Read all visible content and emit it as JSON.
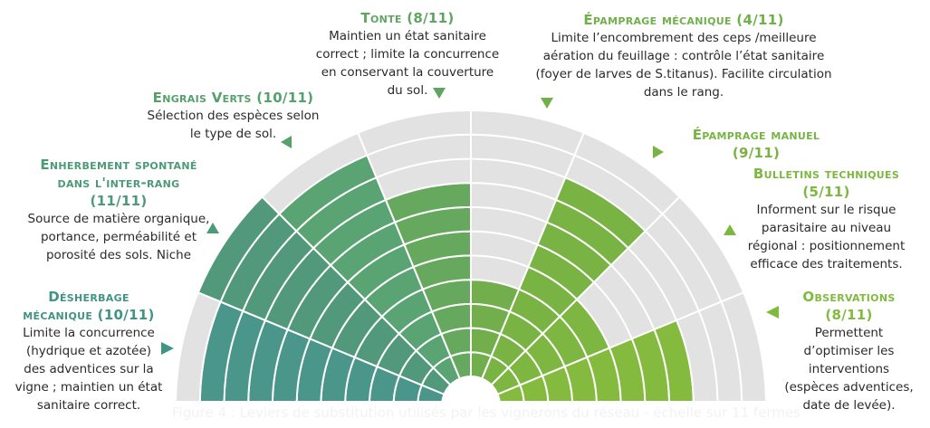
{
  "chart_data": {
    "type": "radial-bar",
    "title": "Leviers de substitution utilisés par les vignerons du réseau",
    "scale_max": 11,
    "unit": "fermes",
    "categories": [
      "Désherbage mécanique",
      "Enherbement spontané dans l'inter-rang",
      "Engrais verts",
      "Tonte",
      "Épamprage mécanique",
      "Épamprage manuel",
      "Bulletins techniques",
      "Observations"
    ],
    "values": [
      10,
      11,
      10,
      8,
      4,
      9,
      5,
      8
    ],
    "colors": [
      "#4a968a",
      "#52997c",
      "#5aa372",
      "#66a85e",
      "#72ae4c",
      "#79b343",
      "#7db640",
      "#84ba3e"
    ],
    "background_color": "#e2e2e2",
    "grid": true,
    "rings": 11
  },
  "labels": [
    {
      "title": "Désherbage mécanique (10/11)",
      "title_lines": [
        "Désherbage",
        "mécanique (10/11)"
      ],
      "desc_lines": [
        "Limite la concurrence",
        "(hydrique et azotée)",
        "des adventices sur la",
        "vigne ; maintien un état",
        "sanitaire correct."
      ],
      "color": "#3f9484"
    },
    {
      "title": "Enherbement spontané dans l'inter-rang (11/11)",
      "title_lines": [
        "Enherbement spontané",
        "dans l'inter-rang",
        "(11/11)"
      ],
      "desc_lines": [
        "Source de matière organique,",
        "portance, perméabilité et",
        "porosité des sols. Niche"
      ],
      "color": "#4b9a78"
    },
    {
      "title": "Engrais Verts (10/11)",
      "title_lines": [
        "Engrais Verts (10/11)"
      ],
      "desc_lines": [
        "Sélection des espèces selon",
        "le type de sol."
      ],
      "color": "#56a06c"
    },
    {
      "title": "Tonte (8/11)",
      "title_lines": [
        "Tonte (8/11)"
      ],
      "desc_lines": [
        "Maintien un état sanitaire",
        "correct ; limite la concurrence",
        "en conservant la couverture",
        "du sol."
      ],
      "color": "#5fa461"
    },
    {
      "title": "Épamprage mécanique (4/11)",
      "title_lines": [
        "Épamprage mécanique (4/11)"
      ],
      "desc_lines": [
        "Limite l’encombrement des ceps /meilleure",
        "aération du feuillage : contrôle l’état sanitaire",
        "(foyer de larves de S.titanus). Facilite circulation",
        "dans le rang."
      ],
      "color": "#6fb04a"
    },
    {
      "title": "Épamprage manuel (9/11)",
      "title_lines": [
        "Épamprage manuel",
        "(9/11)"
      ],
      "desc_lines": [],
      "color": "#78b443"
    },
    {
      "title": "Bulletins techniques (5/11)",
      "title_lines": [
        "Bulletins techniques",
        "(5/11)"
      ],
      "desc_lines": [
        "Informent sur le risque",
        "parasitaire au niveau",
        "régional : positionnement",
        "efficace des traitements."
      ],
      "color": "#7cb83f"
    },
    {
      "title": "Observations (8/11)",
      "title_lines": [
        "Observations",
        "(8/11)"
      ],
      "desc_lines": [
        "Permettent",
        "d’optimiser les",
        "interventions",
        "(espèces adventices,",
        "date de levée)."
      ],
      "color": "#80bb3d"
    }
  ],
  "caption": "Figure 4 : Leviers de substitution utilisés par les vignerons du réseau - échelle sur 11 fermes"
}
